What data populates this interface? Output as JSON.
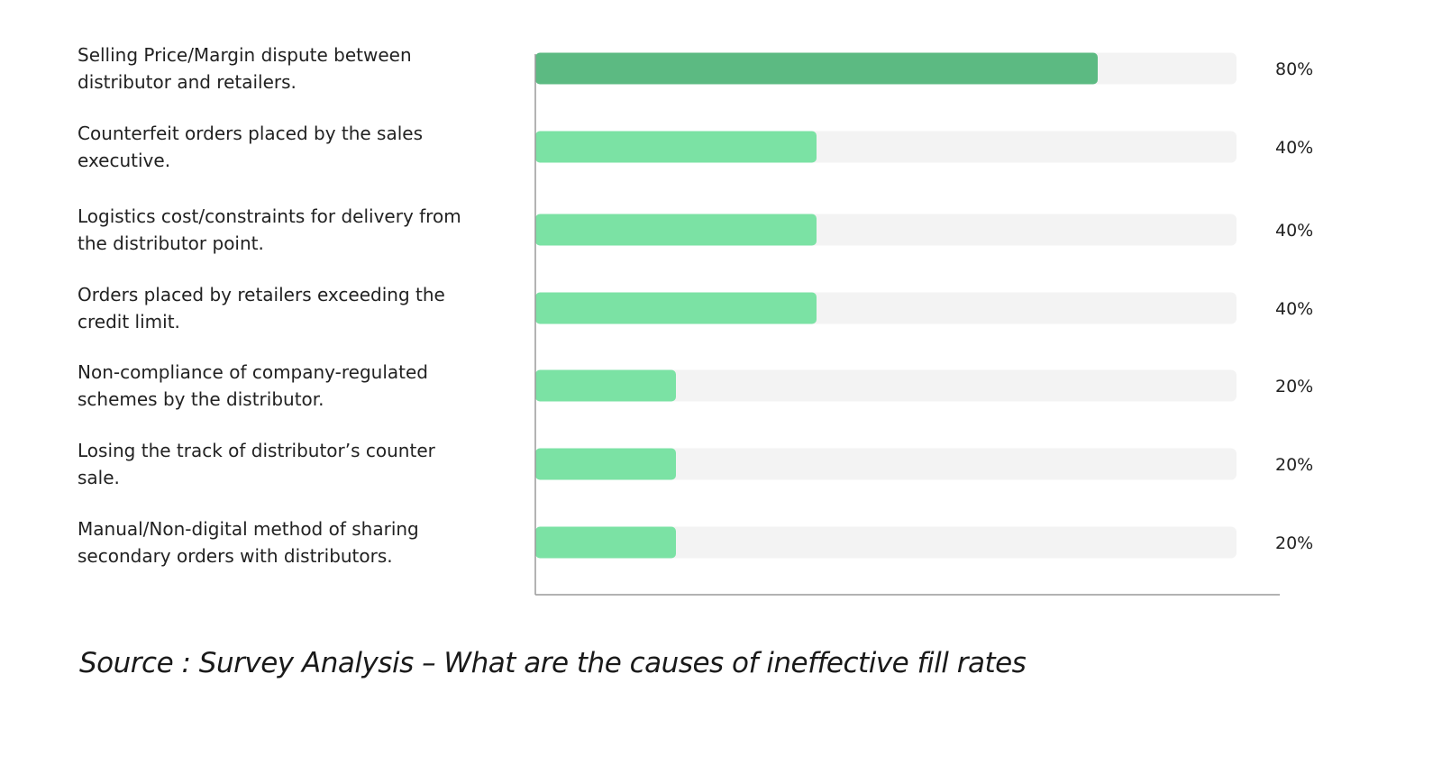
{
  "chart_data": {
    "type": "bar",
    "orientation": "horizontal",
    "categories": [
      [
        "Selling Price/Margin dispute between",
        "distributor and retailers."
      ],
      [
        "Counterfeit orders placed by the sales",
        "executive."
      ],
      [
        "Logistics cost/constraints for delivery from",
        "the distributor point."
      ],
      [
        "Orders placed by retailers exceeding the",
        "credit limit."
      ],
      [
        "Non-compliance of company-regulated",
        "schemes by the distributor."
      ],
      [
        "Losing the track of distributor’s counter",
        "sale."
      ],
      [
        "Manual/Non-digital method of sharing",
        "secondary orders with distributors."
      ]
    ],
    "values": [
      80,
      40,
      40,
      40,
      20,
      20,
      20
    ],
    "value_labels": [
      "80%",
      "40%",
      "40%",
      "40%",
      "20%",
      "20%",
      "20%"
    ],
    "xlim": [
      0,
      100
    ],
    "unit": "%",
    "grid": false,
    "legend": "none",
    "colors": {
      "highlight_bar": "#5cba82",
      "bar": "#7be2a4",
      "track": "#f3f3f3",
      "axis": "#9a9a9a"
    }
  },
  "source": "Source : Survey Analysis – What are the causes of ineffective fill rates"
}
